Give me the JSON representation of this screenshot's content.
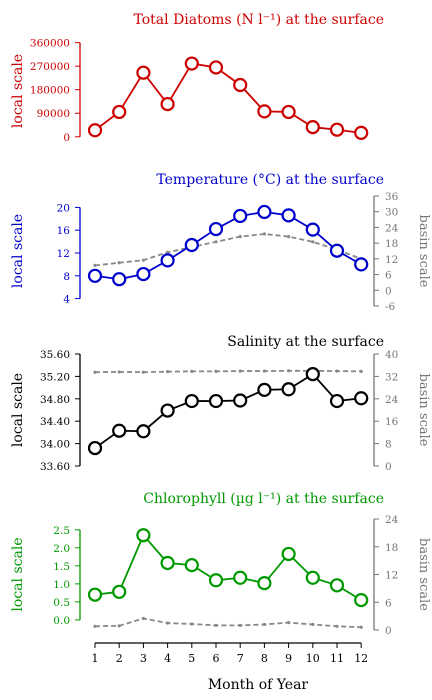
{
  "figure": {
    "xlabel": "Month of Year",
    "months": [
      "1",
      "2",
      "3",
      "4",
      "5",
      "6",
      "7",
      "8",
      "9",
      "10",
      "11",
      "12"
    ]
  },
  "chart_data": [
    {
      "type": "line",
      "title": "Total Diatoms (N l⁻¹) at the surface",
      "ylabel": "local scale",
      "color": "#cc0000",
      "ylim": [
        -20000,
        370000
      ],
      "yticks": [
        0,
        90000,
        180000,
        270000,
        360000
      ],
      "ytick_labels": [
        "0",
        "90000",
        "180000",
        "270000",
        "360000"
      ],
      "x": [
        1,
        2,
        3,
        4,
        5,
        6,
        7,
        8,
        9,
        10,
        11,
        12
      ],
      "series": [
        {
          "values": [
            25000,
            95000,
            245000,
            125000,
            280000,
            265000,
            198000,
            97000,
            95000,
            37000,
            27000,
            15000
          ]
        }
      ]
    },
    {
      "type": "line",
      "title": "Temperature (°C) at the surface",
      "ylabel": "local scale",
      "ylabel_right": "basin scale",
      "color": "#0000cc",
      "ylim": [
        2.7,
        22.0
      ],
      "yticks": [
        4,
        8,
        12,
        16,
        20
      ],
      "ytick_labels": [
        "4",
        "8",
        "12",
        "16",
        "20"
      ],
      "right_ylim": [
        -6,
        36
      ],
      "right_yticks": [
        -6,
        0,
        6,
        12,
        18,
        24,
        30,
        36
      ],
      "right_ytick_labels": [
        "-6",
        "0",
        "6",
        "12",
        "18",
        "24",
        "30",
        "36"
      ],
      "x": [
        1,
        2,
        3,
        4,
        5,
        6,
        7,
        8,
        9,
        10,
        11,
        12
      ],
      "series": [
        {
          "values": [
            8.0,
            7.4,
            8.3,
            10.7,
            13.4,
            16.2,
            18.5,
            19.2,
            18.6,
            16.1,
            12.4,
            10.0
          ]
        },
        {
          "axis": "right",
          "style": "dashed",
          "values": [
            9.5,
            10.5,
            11.5,
            14.5,
            16.5,
            18.5,
            20.5,
            21.5,
            20.5,
            18.5,
            15.5,
            12.0
          ]
        }
      ]
    },
    {
      "type": "line",
      "title": "Salinity at the surface",
      "ylabel": "local scale",
      "ylabel_right": "basin scale",
      "color": "#000000",
      "ylim": [
        33.6,
        35.6
      ],
      "yticks": [
        33.6,
        34.0,
        34.4,
        34.8,
        35.2,
        35.6
      ],
      "ytick_labels": [
        "33.60",
        "34.00",
        "34.40",
        "34.80",
        "35.20",
        "35.60"
      ],
      "right_ylim": [
        0,
        40
      ],
      "right_yticks": [
        0,
        8,
        16,
        24,
        32,
        40
      ],
      "right_ytick_labels": [
        "0",
        "8",
        "16",
        "24",
        "32",
        "40"
      ],
      "x": [
        1,
        2,
        3,
        4,
        5,
        6,
        7,
        8,
        9,
        10,
        11,
        12
      ],
      "series": [
        {
          "values": [
            33.92,
            34.23,
            34.22,
            34.59,
            34.76,
            34.76,
            34.77,
            34.96,
            34.97,
            35.24,
            34.76,
            34.81
          ]
        },
        {
          "axis": "right",
          "style": "dashed",
          "values": [
            33.5,
            33.6,
            33.5,
            33.7,
            33.8,
            33.8,
            33.9,
            33.9,
            34.0,
            34.0,
            33.9,
            33.8
          ]
        }
      ]
    },
    {
      "type": "line",
      "title": "Chlorophyll (µg l⁻¹) at the surface",
      "ylabel": "local scale",
      "ylabel_right": "basin scale",
      "color": "#009900",
      "ylim": [
        -0.28,
        2.8
      ],
      "yticks": [
        0.0,
        0.5,
        1.0,
        1.5,
        2.0,
        2.5
      ],
      "ytick_labels": [
        "0.0",
        "0.5",
        "1.0",
        "1.5",
        "2.0",
        "2.5"
      ],
      "right_ylim": [
        0,
        24
      ],
      "right_yticks": [
        0,
        6,
        12,
        18,
        24
      ],
      "right_ytick_labels": [
        "0",
        "6",
        "12",
        "18",
        "24"
      ],
      "x": [
        1,
        2,
        3,
        4,
        5,
        6,
        7,
        8,
        9,
        10,
        11,
        12
      ],
      "series": [
        {
          "values": [
            0.7,
            0.78,
            2.35,
            1.58,
            1.52,
            1.1,
            1.17,
            1.02,
            1.83,
            1.17,
            0.96,
            0.55
          ]
        },
        {
          "axis": "right",
          "style": "dashed",
          "values": [
            0.8,
            0.9,
            2.5,
            1.5,
            1.3,
            1.0,
            1.0,
            1.2,
            1.6,
            1.2,
            0.8,
            0.6
          ]
        }
      ]
    }
  ]
}
